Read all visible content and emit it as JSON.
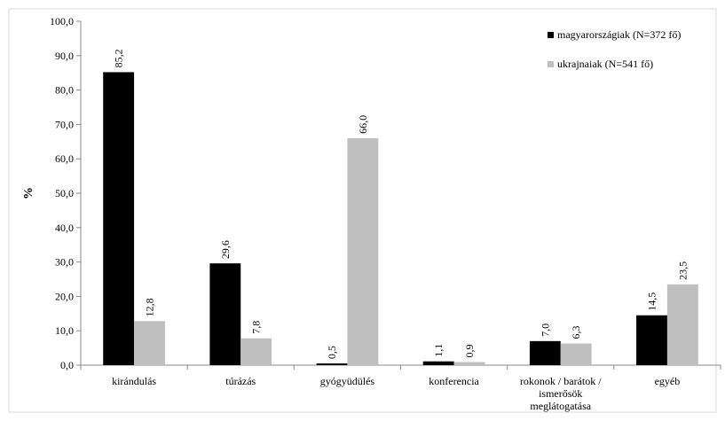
{
  "chart_data": {
    "type": "bar",
    "title": "",
    "xlabel": "",
    "ylabel": "%",
    "ylim": [
      0,
      100
    ],
    "yticks": [
      "0,0",
      "10,0",
      "20,0",
      "30,0",
      "40,0",
      "50,0",
      "60,0",
      "70,0",
      "80,0",
      "90,0",
      "100,0"
    ],
    "grid": false,
    "legend_position": "top-right",
    "categories": [
      [
        "kirándulás"
      ],
      [
        "túrázás"
      ],
      [
        "gyógyüdülés"
      ],
      [
        "konferencia"
      ],
      [
        "rokonok / barátok /",
        "ismerősök",
        "meglátogatása"
      ],
      [
        "egyéb"
      ]
    ],
    "series": [
      {
        "name": "magyarországiak (N=372 fő)",
        "color": "#000000",
        "values": [
          85.2,
          29.6,
          0.5,
          1.1,
          7.0,
          14.5
        ],
        "labels": [
          "85,2",
          "29,6",
          "0,5",
          "1,1",
          "7,0",
          "14,5"
        ]
      },
      {
        "name": "ukrajnaiak (N=541 fő)",
        "color": "#bfbfbf",
        "values": [
          12.8,
          7.8,
          66.0,
          0.9,
          6.3,
          23.5
        ],
        "labels": [
          "12,8",
          "7,8",
          "66,0",
          "0,9",
          "6,3",
          "23,5"
        ]
      }
    ]
  }
}
